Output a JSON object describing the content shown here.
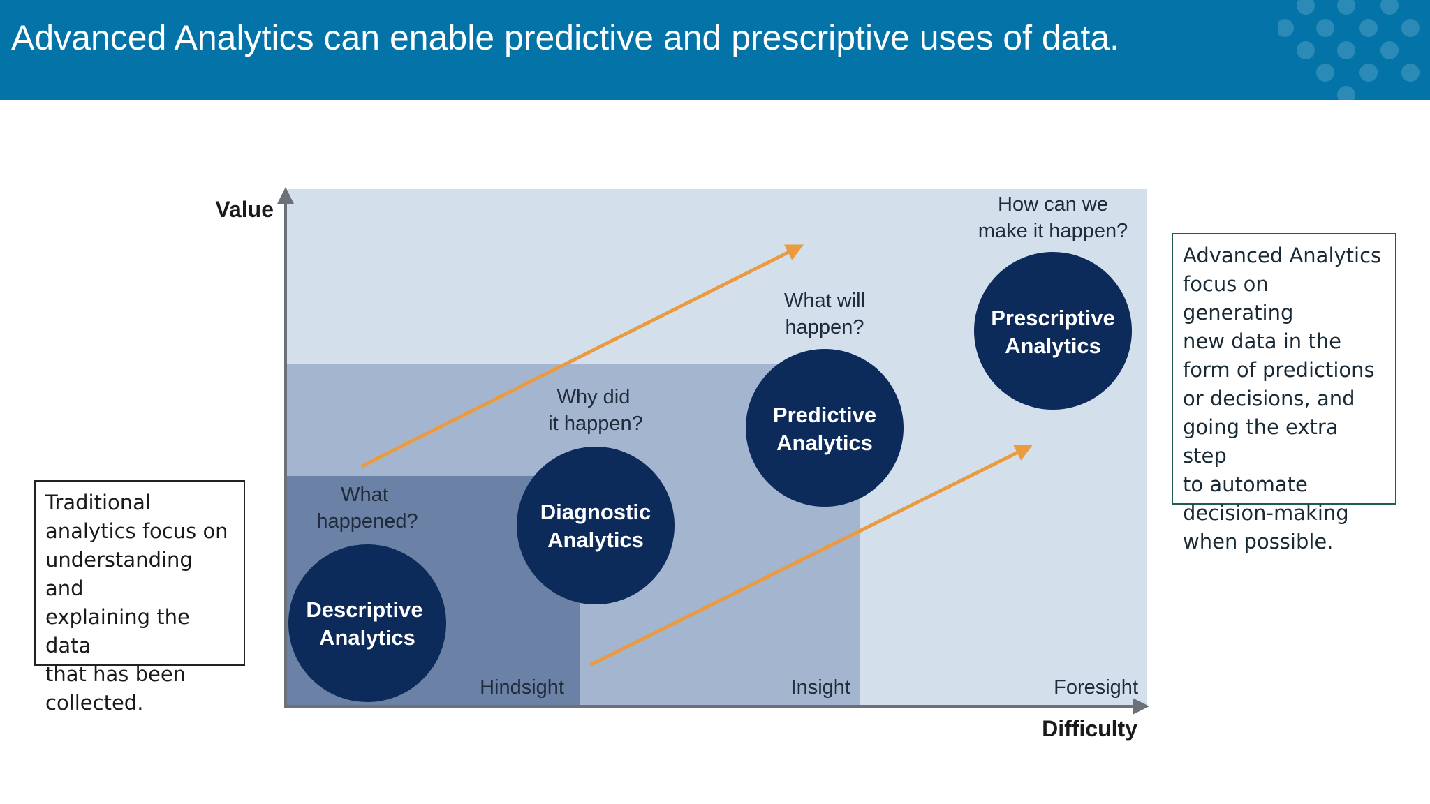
{
  "slide": {
    "title": "Advanced Analytics can enable predictive and prescriptive uses of data."
  },
  "colors": {
    "header": "#0474a8",
    "region_outer": "#d3e0ec",
    "region_mid": "#a3b5cf",
    "region_inner": "#6b82a6",
    "circle": "#0c2a5a",
    "arrow": "#eb9a3f",
    "axis": "#6b7079"
  },
  "diagram": {
    "y_axis_label": "Value",
    "x_axis_label": "Difficulty",
    "zones": [
      {
        "id": "hindsight",
        "label": "Hindsight"
      },
      {
        "id": "insight",
        "label": "Insight"
      },
      {
        "id": "foresight",
        "label": "Foresight"
      }
    ],
    "stages": [
      {
        "id": "descriptive",
        "line1": "Descriptive",
        "line2": "Analytics",
        "q1": "What",
        "q2": "happened?"
      },
      {
        "id": "diagnostic",
        "line1": "Diagnostic",
        "line2": "Analytics",
        "q1": "Why did",
        "q2": "it happen?"
      },
      {
        "id": "predictive",
        "line1": "Predictive",
        "line2": "Analytics",
        "q1": "What will",
        "q2": "happen?"
      },
      {
        "id": "prescriptive",
        "line1": "Prescriptive",
        "line2": "Analytics",
        "q1": "How can we",
        "q2": "make it happen?"
      }
    ]
  },
  "notes": {
    "traditional": "Traditional\nanalytics focus on\nunderstanding and\nexplaining the data\nthat has been\ncollected.",
    "advanced": "Advanced Analytics\nfocus on generating\nnew data in the\nform of predictions\nor decisions, and\ngoing the extra step\nto automate\ndecision-making\nwhen possible."
  }
}
